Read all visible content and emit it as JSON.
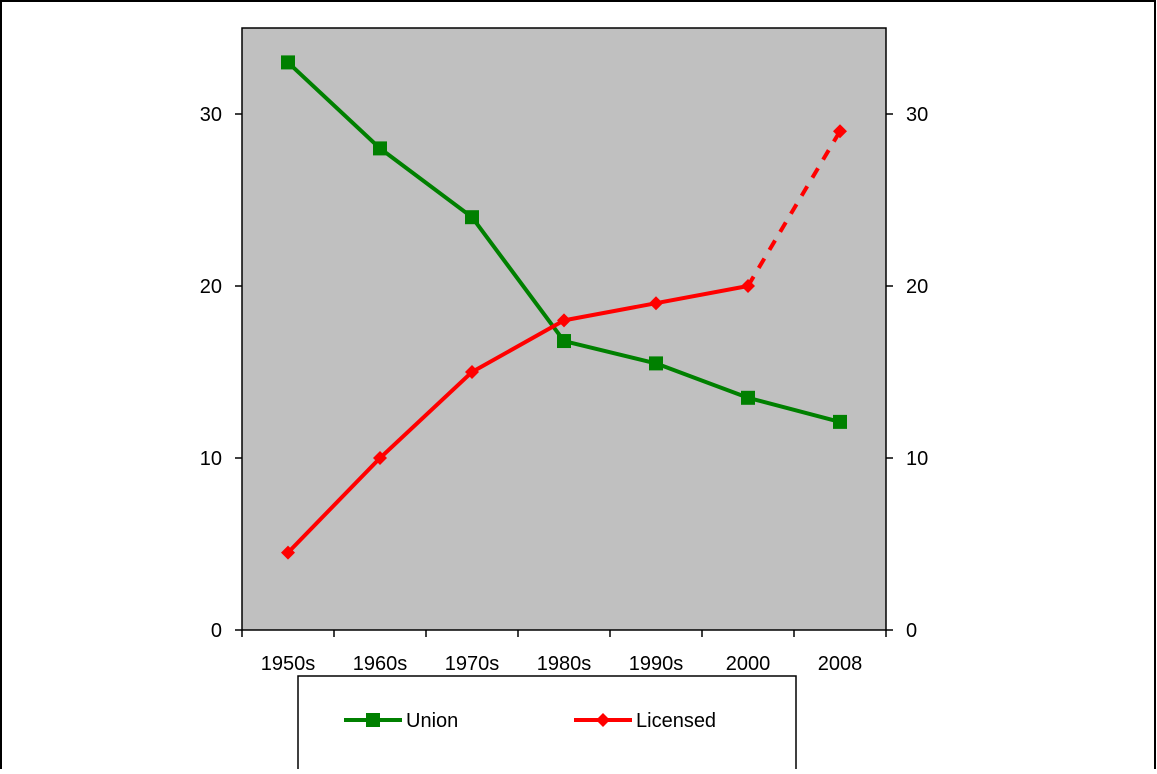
{
  "chart_data": {
    "type": "line",
    "categories": [
      "1950s",
      "1960s",
      "1970s",
      "1980s",
      "1990s",
      "2000",
      "2008"
    ],
    "series": [
      {
        "name": "Union",
        "values": [
          33,
          28,
          24,
          16.8,
          15.5,
          13.5,
          12.1
        ],
        "color": "#008000",
        "marker": "square",
        "line_style": "solid"
      },
      {
        "name": "Licensed",
        "values": [
          4.5,
          10,
          15,
          18,
          19,
          20,
          29
        ],
        "color": "#ff0000",
        "marker": "diamond",
        "line_style": "solid",
        "dashed_last_segment": true
      }
    ],
    "ylim": [
      0,
      35
    ],
    "yticks": [
      "0",
      "10",
      "20",
      "30"
    ],
    "secondary_yticks": [
      "0",
      "10",
      "20",
      "30"
    ],
    "plot_background": "#c0c0c0",
    "grid": false,
    "legend_position": "bottom"
  }
}
